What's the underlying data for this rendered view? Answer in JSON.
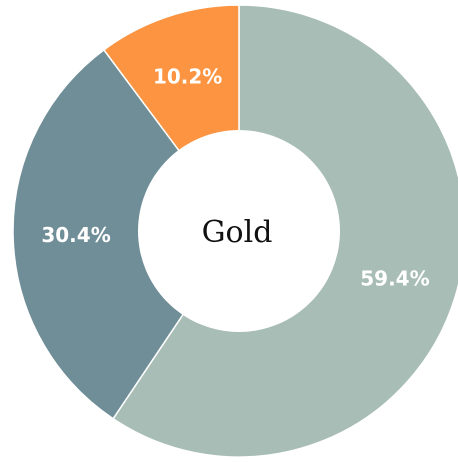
{
  "chart_data": {
    "type": "pie",
    "variant": "donut",
    "center_label": "Gold",
    "start": "top, clockwise",
    "slices": [
      {
        "value": 59.4,
        "label": "59.4%",
        "color": "#a8bdb6"
      },
      {
        "value": 30.4,
        "label": "30.4%",
        "color": "#708e98"
      },
      {
        "value": 10.2,
        "label": "10.2%",
        "color": "#fc9441"
      }
    ],
    "slice_border_color": "#ffffff",
    "background": "#ffffff"
  }
}
